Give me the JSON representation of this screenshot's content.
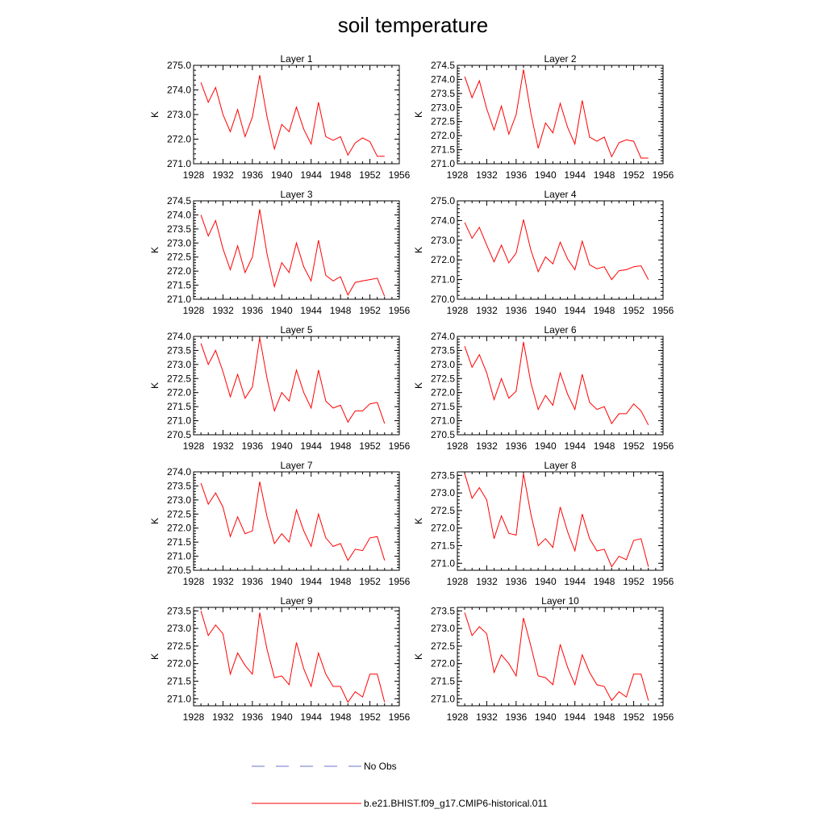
{
  "title": "soil temperature",
  "legend": {
    "entries": [
      {
        "label": "No Obs",
        "color": "#6b73c8",
        "dash": true
      },
      {
        "label": "b.e21.BHIST.f09_g17.CMIP6-historical.011",
        "color": "#ff0000",
        "dash": false
      }
    ]
  },
  "colors": {
    "series": "#ff0000",
    "axis": "#000000"
  },
  "chart_data": [
    {
      "type": "line",
      "title": "Layer 1",
      "ylabel": "K",
      "xlim": [
        1928,
        1956
      ],
      "ylim": [
        271.0,
        275.0
      ],
      "xticks": [
        1928,
        1932,
        1936,
        1940,
        1944,
        1948,
        1952,
        1956
      ],
      "yticks": [
        "271.0",
        "272.0",
        "273.0",
        "274.0",
        "275.0"
      ],
      "ytick_minor": 0.2,
      "x": [
        1929,
        1930,
        1931,
        1932,
        1933,
        1934,
        1935,
        1936,
        1937,
        1938,
        1939,
        1940,
        1941,
        1942,
        1943,
        1944,
        1945,
        1946,
        1947,
        1948,
        1949,
        1950,
        1951,
        1952,
        1953,
        1954
      ],
      "series": [
        {
          "name": "b.e21.BHIST.f09_g17.CMIP6-historical.011",
          "values": [
            274.3,
            273.5,
            274.1,
            273.0,
            272.3,
            273.2,
            272.1,
            272.9,
            274.6,
            272.9,
            271.6,
            272.6,
            272.3,
            273.3,
            272.4,
            271.8,
            273.5,
            272.1,
            271.95,
            272.1,
            271.35,
            271.85,
            272.05,
            271.9,
            271.3,
            271.3
          ]
        }
      ]
    },
    {
      "type": "line",
      "title": "Layer 2",
      "ylabel": "K",
      "xlim": [
        1928,
        1956
      ],
      "ylim": [
        271.0,
        274.5
      ],
      "xticks": [
        1928,
        1932,
        1936,
        1940,
        1944,
        1948,
        1952,
        1956
      ],
      "yticks": [
        "271.0",
        "271.5",
        "272.0",
        "272.5",
        "273.0",
        "273.5",
        "274.0",
        "274.5"
      ],
      "ytick_minor": 0.1,
      "x": [
        1929,
        1930,
        1931,
        1932,
        1933,
        1934,
        1935,
        1936,
        1937,
        1938,
        1939,
        1940,
        1941,
        1942,
        1943,
        1944,
        1945,
        1946,
        1947,
        1948,
        1949,
        1950,
        1951,
        1952,
        1953,
        1954
      ],
      "series": [
        {
          "name": "b.e21.BHIST.f09_g17.CMIP6-historical.011",
          "values": [
            274.1,
            273.35,
            273.95,
            272.95,
            272.2,
            273.05,
            272.05,
            272.75,
            274.35,
            272.8,
            271.55,
            272.45,
            272.1,
            273.15,
            272.3,
            271.7,
            273.25,
            271.95,
            271.8,
            271.95,
            271.25,
            271.75,
            271.85,
            271.8,
            271.2,
            271.2
          ]
        }
      ]
    },
    {
      "type": "line",
      "title": "Layer 3",
      "ylabel": "K",
      "xlim": [
        1928,
        1956
      ],
      "ylim": [
        271.0,
        274.5
      ],
      "xticks": [
        1928,
        1932,
        1936,
        1940,
        1944,
        1948,
        1952,
        1956
      ],
      "yticks": [
        "271.0",
        "271.5",
        "272.0",
        "272.5",
        "273.0",
        "273.5",
        "274.0",
        "274.5"
      ],
      "ytick_minor": 0.1,
      "x": [
        1929,
        1930,
        1931,
        1932,
        1933,
        1934,
        1935,
        1936,
        1937,
        1938,
        1939,
        1940,
        1941,
        1942,
        1943,
        1944,
        1945,
        1946,
        1947,
        1948,
        1949,
        1950,
        1951,
        1952,
        1953,
        1954
      ],
      "series": [
        {
          "name": "b.e21.BHIST.f09_g17.CMIP6-historical.011",
          "values": [
            274.0,
            273.25,
            273.8,
            272.8,
            272.05,
            272.9,
            271.95,
            272.5,
            274.2,
            272.6,
            271.45,
            272.3,
            271.95,
            273.0,
            272.15,
            271.65,
            273.1,
            271.85,
            271.65,
            271.8,
            271.15,
            271.6,
            271.65,
            271.7,
            271.75,
            271.1
          ]
        }
      ]
    },
    {
      "type": "line",
      "title": "Layer 4",
      "ylabel": "K",
      "xlim": [
        1928,
        1956
      ],
      "ylim": [
        270.0,
        275.0
      ],
      "xticks": [
        1928,
        1932,
        1936,
        1940,
        1944,
        1948,
        1952,
        1956
      ],
      "yticks": [
        "270.0",
        "271.0",
        "272.0",
        "273.0",
        "274.0",
        "275.0"
      ],
      "ytick_minor": 0.2,
      "x": [
        1929,
        1930,
        1931,
        1932,
        1933,
        1934,
        1935,
        1936,
        1937,
        1938,
        1939,
        1940,
        1941,
        1942,
        1943,
        1944,
        1945,
        1946,
        1947,
        1948,
        1949,
        1950,
        1951,
        1952,
        1953,
        1954
      ],
      "series": [
        {
          "name": "b.e21.BHIST.f09_g17.CMIP6-historical.011",
          "values": [
            273.9,
            273.1,
            273.65,
            272.75,
            271.9,
            272.75,
            271.85,
            272.35,
            274.05,
            272.5,
            271.4,
            272.15,
            271.8,
            272.9,
            272.05,
            271.5,
            272.95,
            271.75,
            271.55,
            271.65,
            271.0,
            271.45,
            271.5,
            271.65,
            271.7,
            271.0
          ]
        }
      ]
    },
    {
      "type": "line",
      "title": "Layer 5",
      "ylabel": "K",
      "xlim": [
        1928,
        1956
      ],
      "ylim": [
        270.5,
        274.0
      ],
      "xticks": [
        1928,
        1932,
        1936,
        1940,
        1944,
        1948,
        1952,
        1956
      ],
      "yticks": [
        "270.5",
        "271.0",
        "271.5",
        "272.0",
        "272.5",
        "273.0",
        "273.5",
        "274.0"
      ],
      "ytick_minor": 0.1,
      "x": [
        1929,
        1930,
        1931,
        1932,
        1933,
        1934,
        1935,
        1936,
        1937,
        1938,
        1939,
        1940,
        1941,
        1942,
        1943,
        1944,
        1945,
        1946,
        1947,
        1948,
        1949,
        1950,
        1951,
        1952,
        1953,
        1954
      ],
      "series": [
        {
          "name": "b.e21.BHIST.f09_g17.CMIP6-historical.011",
          "values": [
            273.75,
            273.0,
            273.5,
            272.75,
            271.85,
            272.65,
            271.8,
            272.2,
            273.95,
            272.5,
            271.35,
            272.0,
            271.7,
            272.8,
            272.0,
            271.45,
            272.8,
            271.7,
            271.45,
            271.55,
            270.95,
            271.35,
            271.35,
            271.6,
            271.65,
            270.9
          ]
        }
      ]
    },
    {
      "type": "line",
      "title": "Layer 6",
      "ylabel": "K",
      "xlim": [
        1928,
        1956
      ],
      "ylim": [
        270.5,
        274.0
      ],
      "xticks": [
        1928,
        1932,
        1936,
        1940,
        1944,
        1948,
        1952,
        1956
      ],
      "yticks": [
        "270.5",
        "271.0",
        "271.5",
        "272.0",
        "272.5",
        "273.0",
        "273.5",
        "274.0"
      ],
      "ytick_minor": 0.1,
      "x": [
        1929,
        1930,
        1931,
        1932,
        1933,
        1934,
        1935,
        1936,
        1937,
        1938,
        1939,
        1940,
        1941,
        1942,
        1943,
        1944,
        1945,
        1946,
        1947,
        1948,
        1949,
        1950,
        1951,
        1952,
        1953,
        1954
      ],
      "series": [
        {
          "name": "b.e21.BHIST.f09_g17.CMIP6-historical.011",
          "values": [
            273.65,
            272.9,
            273.35,
            272.7,
            271.75,
            272.5,
            271.8,
            272.05,
            273.8,
            272.35,
            271.4,
            271.9,
            271.55,
            272.7,
            271.95,
            271.4,
            272.65,
            271.65,
            271.4,
            271.5,
            270.9,
            271.25,
            271.25,
            271.6,
            271.35,
            270.85
          ]
        }
      ]
    },
    {
      "type": "line",
      "title": "Layer 7",
      "ylabel": "K",
      "xlim": [
        1928,
        1956
      ],
      "ylim": [
        270.5,
        274.0
      ],
      "xticks": [
        1928,
        1932,
        1936,
        1940,
        1944,
        1948,
        1952,
        1956
      ],
      "yticks": [
        "270.5",
        "271.0",
        "271.5",
        "272.0",
        "272.5",
        "273.0",
        "273.5",
        "274.0"
      ],
      "ytick_minor": 0.1,
      "x": [
        1929,
        1930,
        1931,
        1932,
        1933,
        1934,
        1935,
        1936,
        1937,
        1938,
        1939,
        1940,
        1941,
        1942,
        1943,
        1944,
        1945,
        1946,
        1947,
        1948,
        1949,
        1950,
        1951,
        1952,
        1953,
        1954
      ],
      "series": [
        {
          "name": "b.e21.BHIST.f09_g17.CMIP6-historical.011",
          "values": [
            273.6,
            272.85,
            273.25,
            272.75,
            271.7,
            272.4,
            271.8,
            271.9,
            273.65,
            272.4,
            271.45,
            271.8,
            271.5,
            272.65,
            271.9,
            271.35,
            272.5,
            271.65,
            271.35,
            271.45,
            270.85,
            271.25,
            271.2,
            271.65,
            271.7,
            270.85
          ]
        }
      ]
    },
    {
      "type": "line",
      "title": "Layer 8",
      "ylabel": "K",
      "xlim": [
        1928,
        1956
      ],
      "ylim": [
        270.8,
        273.6
      ],
      "xticks": [
        1928,
        1932,
        1936,
        1940,
        1944,
        1948,
        1952,
        1956
      ],
      "yticks": [
        "271.0",
        "271.5",
        "272.0",
        "272.5",
        "273.0",
        "273.5"
      ],
      "ytick_minor": 0.1,
      "x": [
        1929,
        1930,
        1931,
        1932,
        1933,
        1934,
        1935,
        1936,
        1937,
        1938,
        1939,
        1940,
        1941,
        1942,
        1943,
        1944,
        1945,
        1946,
        1947,
        1948,
        1949,
        1950,
        1951,
        1952,
        1953,
        1954
      ],
      "series": [
        {
          "name": "b.e21.BHIST.f09_g17.CMIP6-historical.011",
          "values": [
            273.55,
            272.85,
            273.15,
            272.8,
            271.7,
            272.35,
            271.85,
            271.8,
            273.55,
            272.4,
            271.5,
            271.7,
            271.45,
            272.6,
            271.9,
            271.35,
            272.4,
            271.7,
            271.35,
            271.4,
            270.9,
            271.2,
            271.1,
            271.65,
            271.7,
            270.9
          ]
        }
      ]
    },
    {
      "type": "line",
      "title": "Layer 9",
      "ylabel": "K",
      "xlim": [
        1928,
        1956
      ],
      "ylim": [
        270.8,
        273.6
      ],
      "xticks": [
        1928,
        1932,
        1936,
        1940,
        1944,
        1948,
        1952,
        1956
      ],
      "yticks": [
        "271.0",
        "271.5",
        "272.0",
        "272.5",
        "273.0",
        "273.5"
      ],
      "ytick_minor": 0.1,
      "x": [
        1929,
        1930,
        1931,
        1932,
        1933,
        1934,
        1935,
        1936,
        1937,
        1938,
        1939,
        1940,
        1941,
        1942,
        1943,
        1944,
        1945,
        1946,
        1947,
        1948,
        1949,
        1950,
        1951,
        1952,
        1953,
        1954
      ],
      "series": [
        {
          "name": "b.e21.BHIST.f09_g17.CMIP6-historical.011",
          "values": [
            273.5,
            272.8,
            273.1,
            272.85,
            271.7,
            272.3,
            271.95,
            271.7,
            273.45,
            272.4,
            271.6,
            271.65,
            271.4,
            272.6,
            271.85,
            271.35,
            272.3,
            271.7,
            271.35,
            271.35,
            270.9,
            271.2,
            271.05,
            271.7,
            271.7,
            270.9
          ]
        }
      ]
    },
    {
      "type": "line",
      "title": "Layer 10",
      "ylabel": "K",
      "xlim": [
        1928,
        1956
      ],
      "ylim": [
        270.8,
        273.6
      ],
      "xticks": [
        1928,
        1932,
        1936,
        1940,
        1944,
        1948,
        1952,
        1956
      ],
      "yticks": [
        "271.0",
        "271.5",
        "272.0",
        "272.5",
        "273.0",
        "273.5"
      ],
      "ytick_minor": 0.1,
      "x": [
        1929,
        1930,
        1931,
        1932,
        1933,
        1934,
        1935,
        1936,
        1937,
        1938,
        1939,
        1940,
        1941,
        1942,
        1943,
        1944,
        1945,
        1946,
        1947,
        1948,
        1949,
        1950,
        1951,
        1952,
        1953,
        1954
      ],
      "series": [
        {
          "name": "b.e21.BHIST.f09_g17.CMIP6-historical.011",
          "values": [
            273.45,
            272.8,
            273.05,
            272.85,
            271.75,
            272.25,
            272.0,
            271.65,
            273.3,
            272.5,
            271.65,
            271.6,
            271.4,
            272.55,
            271.9,
            271.4,
            272.25,
            271.75,
            271.4,
            271.35,
            270.95,
            271.2,
            271.05,
            271.7,
            271.7,
            270.95
          ]
        }
      ]
    }
  ]
}
